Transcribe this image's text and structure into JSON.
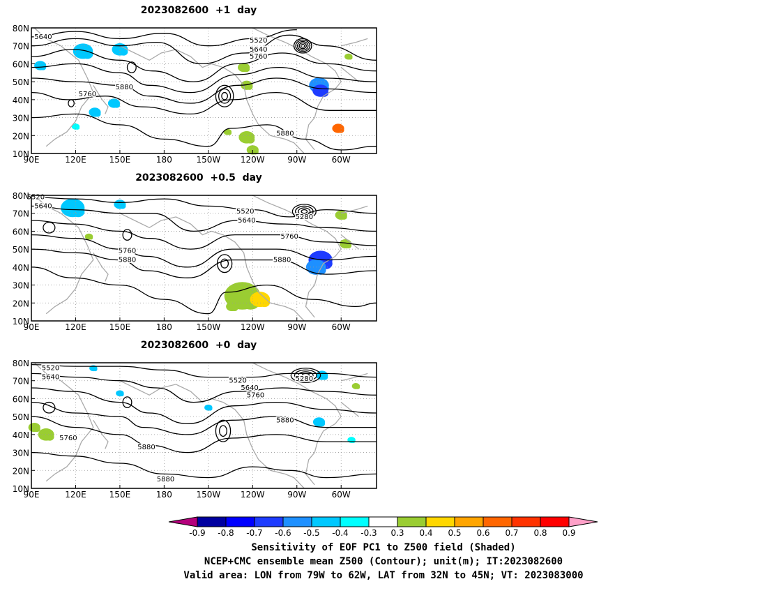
{
  "panels": [
    {
      "title": "2023082600  +1  day",
      "contour_labels": [
        {
          "text": "5640",
          "lon": 98,
          "lat": 75
        },
        {
          "text": "5760",
          "lon": 128,
          "lat": 43
        },
        {
          "text": "5880",
          "lon": 153,
          "lat": 47
        },
        {
          "text": "5520",
          "lon": 244,
          "lat": 73
        },
        {
          "text": "5640",
          "lon": 244,
          "lat": 68
        },
        {
          "text": "5760",
          "lon": 244,
          "lat": 64
        },
        {
          "text": "5880",
          "lon": 262,
          "lat": 21
        }
      ]
    },
    {
      "title": "2023082600  +0.5  day",
      "contour_labels": [
        {
          "text": "5520",
          "lon": 93,
          "lat": 79
        },
        {
          "text": "5640",
          "lon": 98,
          "lat": 74
        },
        {
          "text": "5760",
          "lon": 155,
          "lat": 49
        },
        {
          "text": "5880",
          "lon": 155,
          "lat": 44
        },
        {
          "text": "5520",
          "lon": 235,
          "lat": 71
        },
        {
          "text": "5640",
          "lon": 236,
          "lat": 66
        },
        {
          "text": "5280",
          "lon": 275,
          "lat": 68
        },
        {
          "text": "5760",
          "lon": 265,
          "lat": 57
        },
        {
          "text": "5880",
          "lon": 260,
          "lat": 44
        }
      ]
    },
    {
      "title": "2023082600  +0  day",
      "contour_labels": [
        {
          "text": "5520",
          "lon": 103,
          "lat": 77
        },
        {
          "text": "5640",
          "lon": 103,
          "lat": 72
        },
        {
          "text": "5760",
          "lon": 115,
          "lat": 38
        },
        {
          "text": "5880",
          "lon": 168,
          "lat": 33
        },
        {
          "text": "5880",
          "lon": 181,
          "lat": 15
        },
        {
          "text": "5520",
          "lon": 230,
          "lat": 70
        },
        {
          "text": "5640",
          "lon": 238,
          "lat": 66
        },
        {
          "text": "5760",
          "lon": 242,
          "lat": 62
        },
        {
          "text": "5280",
          "lon": 275,
          "lat": 71
        },
        {
          "text": "5880",
          "lon": 262,
          "lat": 48
        }
      ]
    }
  ],
  "x_ticks": [
    "90E",
    "120E",
    "150E",
    "180",
    "150W",
    "120W",
    "90W",
    "60W"
  ],
  "x_tick_lons": [
    90,
    120,
    150,
    180,
    210,
    240,
    270,
    300
  ],
  "y_ticks": [
    "80N",
    "70N",
    "60N",
    "50N",
    "40N",
    "30N",
    "20N",
    "10N"
  ],
  "y_tick_lats": [
    80,
    70,
    60,
    50,
    40,
    30,
    20,
    10
  ],
  "colorbar": {
    "labels": [
      "-0.9",
      "-0.8",
      "-0.7",
      "-0.6",
      "-0.5",
      "-0.4",
      "-0.3",
      "0.3",
      "0.4",
      "0.5",
      "0.6",
      "0.7",
      "0.8",
      "0.9"
    ],
    "colors": [
      "#b4007c",
      "#0000a0",
      "#0000ff",
      "#1e3cff",
      "#1e90ff",
      "#00c8ff",
      "#00ffff",
      "#ffffff",
      "#9acd32",
      "#ffd700",
      "#ffa500",
      "#ff6600",
      "#ff3300",
      "#ff0000",
      "#ffa0c8"
    ]
  },
  "caption": {
    "line1": "Sensitivity of EOF PC1 to Z500 field (Shaded)",
    "line2": "NCEP+CMC ensemble mean Z500 (Contour); unit(m); IT:2023082600",
    "line3": "Valid area: LON from 79W to 62W, LAT from 32N to 45N; VT: 2023083000"
  }
}
